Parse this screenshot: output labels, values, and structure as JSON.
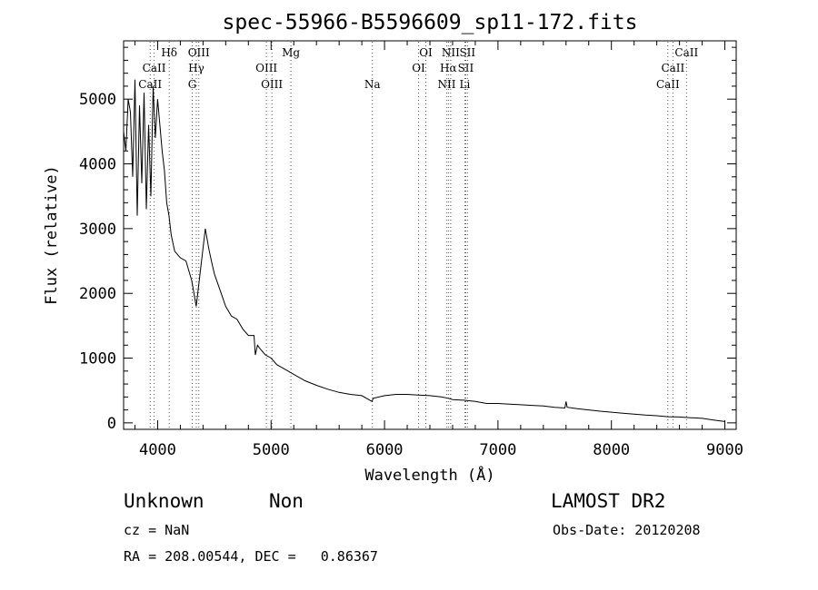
{
  "chart_data": {
    "type": "line",
    "title": "spec-55966-B5596609_sp11-172.fits",
    "xlabel": "Wavelength (Å)",
    "ylabel": "Flux (relative)",
    "xlim": [
      3700,
      9100
    ],
    "ylim": [
      -100,
      5900
    ],
    "x_ticks": [
      4000,
      5000,
      6000,
      7000,
      8000,
      9000
    ],
    "y_ticks": [
      0,
      1000,
      2000,
      3000,
      4000,
      5000
    ],
    "grid": false,
    "spectrum": {
      "x": [
        3700,
        3720,
        3740,
        3760,
        3780,
        3800,
        3820,
        3840,
        3860,
        3880,
        3900,
        3920,
        3940,
        3960,
        3980,
        4000,
        4020,
        4040,
        4060,
        4080,
        4100,
        4120,
        4150,
        4200,
        4250,
        4300,
        4340,
        4360,
        4380,
        4400,
        4420,
        4450,
        4480,
        4500,
        4550,
        4600,
        4650,
        4700,
        4750,
        4800,
        4850,
        4861,
        4880,
        4900,
        4950,
        5000,
        5050,
        5100,
        5150,
        5200,
        5300,
        5400,
        5500,
        5600,
        5700,
        5800,
        5890,
        5900,
        6000,
        6100,
        6200,
        6300,
        6400,
        6500,
        6563,
        6600,
        6700,
        6800,
        6900,
        7000,
        7100,
        7200,
        7300,
        7400,
        7500,
        7590,
        7600,
        7610,
        7700,
        7800,
        7900,
        8000,
        8100,
        8200,
        8300,
        8400,
        8500,
        8600,
        8700,
        8800,
        8900,
        9000
      ],
      "y": [
        4500,
        4200,
        5000,
        4800,
        3800,
        5300,
        3200,
        4900,
        3700,
        5100,
        3300,
        4600,
        3500,
        5200,
        4400,
        5000,
        4600,
        4200,
        3900,
        3400,
        3200,
        2900,
        2650,
        2550,
        2500,
        2200,
        1800,
        2100,
        2400,
        2700,
        3000,
        2700,
        2450,
        2300,
        2050,
        1800,
        1650,
        1600,
        1450,
        1350,
        1350,
        1050,
        1200,
        1150,
        1050,
        1000,
        900,
        850,
        800,
        750,
        650,
        580,
        520,
        470,
        440,
        420,
        330,
        380,
        420,
        440,
        440,
        430,
        420,
        400,
        380,
        360,
        350,
        330,
        300,
        300,
        290,
        280,
        270,
        260,
        240,
        230,
        330,
        240,
        220,
        200,
        180,
        165,
        150,
        135,
        120,
        110,
        95,
        90,
        80,
        70,
        45,
        20
      ]
    },
    "lines": [
      {
        "label": "CaII",
        "x": 3934,
        "row": 3
      },
      {
        "label": "CaII",
        "x": 3969,
        "row": 2
      },
      {
        "label": "Hδ",
        "x": 4102,
        "row": 1
      },
      {
        "label": "Hγ",
        "x": 4341,
        "row": 2
      },
      {
        "label": "G",
        "x": 4305,
        "row": 3
      },
      {
        "label": "OIII",
        "x": 4363,
        "row": 1
      },
      {
        "label": "OIII",
        "x": 4959,
        "row": 2
      },
      {
        "label": "OIII",
        "x": 5007,
        "row": 3
      },
      {
        "label": "Mg",
        "x": 5175,
        "row": 1
      },
      {
        "label": "Na",
        "x": 5893,
        "row": 3
      },
      {
        "label": "OI",
        "x": 6300,
        "row": 2
      },
      {
        "label": "OI",
        "x": 6364,
        "row": 1
      },
      {
        "label": "NII",
        "x": 6548,
        "row": 3
      },
      {
        "label": "Hα",
        "x": 6563,
        "row": 2
      },
      {
        "label": "NII",
        "x": 6583,
        "row": 1
      },
      {
        "label": "SII",
        "x": 6716,
        "row": 2
      },
      {
        "label": "SII",
        "x": 6731,
        "row": 1
      },
      {
        "label": "Li",
        "x": 6708,
        "row": 3
      },
      {
        "label": "CaII",
        "x": 8498,
        "row": 3
      },
      {
        "label": "CaII",
        "x": 8542,
        "row": 2
      },
      {
        "label": "CaII",
        "x": 8662,
        "row": 1
      }
    ]
  },
  "info": {
    "class": "Unknown",
    "subclass": "Non",
    "survey": "LAMOST DR2",
    "cz": "cz = NaN",
    "obs_date": "Obs-Date: 20120208",
    "radec": "RA = 208.00544, DEC =   0.86367"
  }
}
